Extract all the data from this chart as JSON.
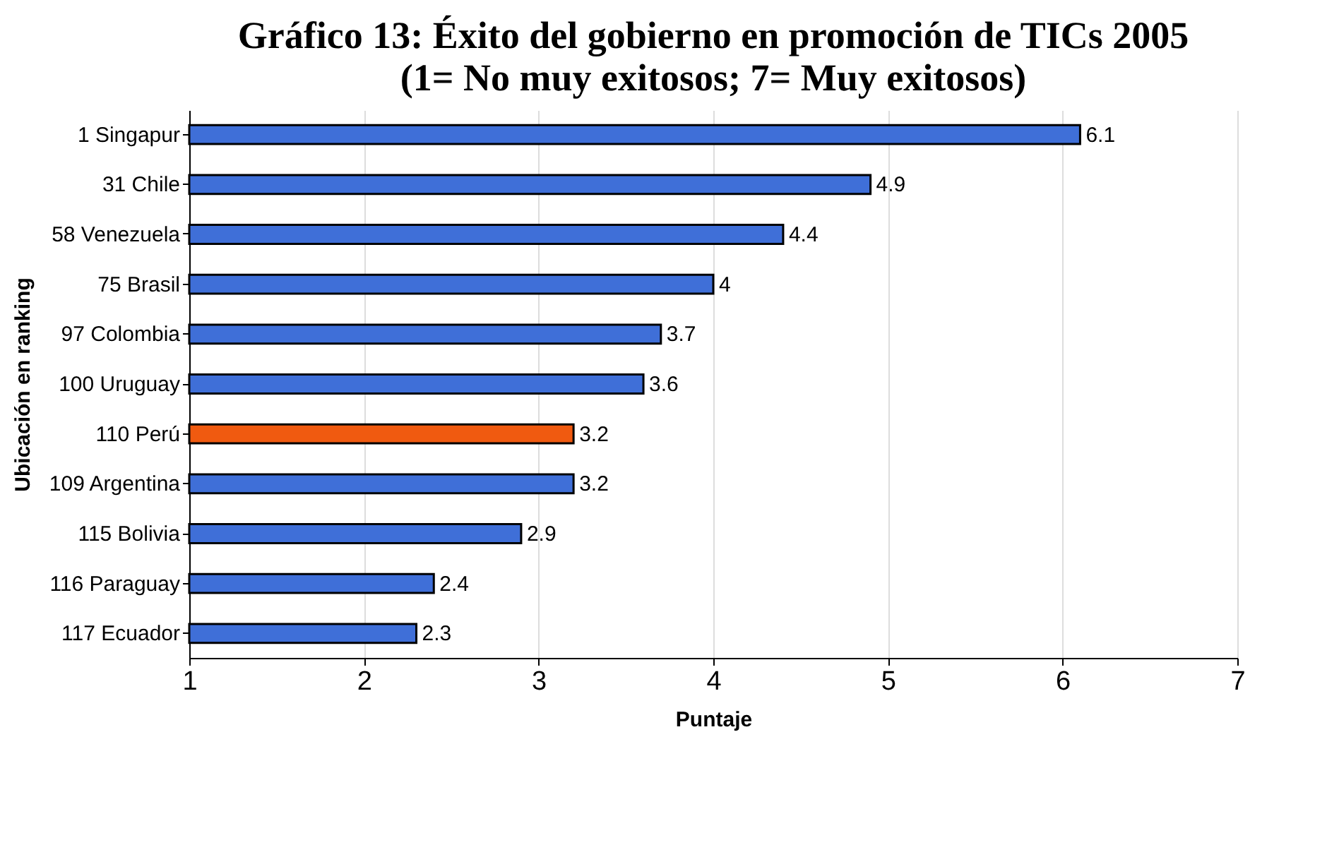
{
  "chart_data": {
    "type": "bar",
    "orientation": "horizontal",
    "title": "Gráfico 13: Éxito del gobierno en promoción de TICs 2005",
    "subtitle": "(1= No muy exitosos; 7= Muy exitosos)",
    "xlabel": "Puntaje",
    "ylabel": "Ubicación en ranking",
    "categories": [
      "1 Singapur",
      "31 Chile",
      "58 Venezuela",
      "75 Brasil",
      "97 Colombia",
      "100 Uruguay",
      "110 Perú",
      "109 Argentina",
      "115 Bolivia",
      "116 Paraguay",
      "117 Ecuador"
    ],
    "values": [
      6.1,
      4.9,
      4.4,
      4,
      3.7,
      3.6,
      3.2,
      3.2,
      2.9,
      2.4,
      2.3
    ],
    "colors": [
      "#3f6fd8",
      "#3f6fd8",
      "#3f6fd8",
      "#3f6fd8",
      "#3f6fd8",
      "#3f6fd8",
      "#f05a10",
      "#3f6fd8",
      "#3f6fd8",
      "#3f6fd8",
      "#3f6fd8"
    ],
    "xlim": [
      1,
      7
    ],
    "xticks": [
      1,
      2,
      3,
      4,
      5,
      6,
      7
    ],
    "grid": "x",
    "data_labels": true
  }
}
